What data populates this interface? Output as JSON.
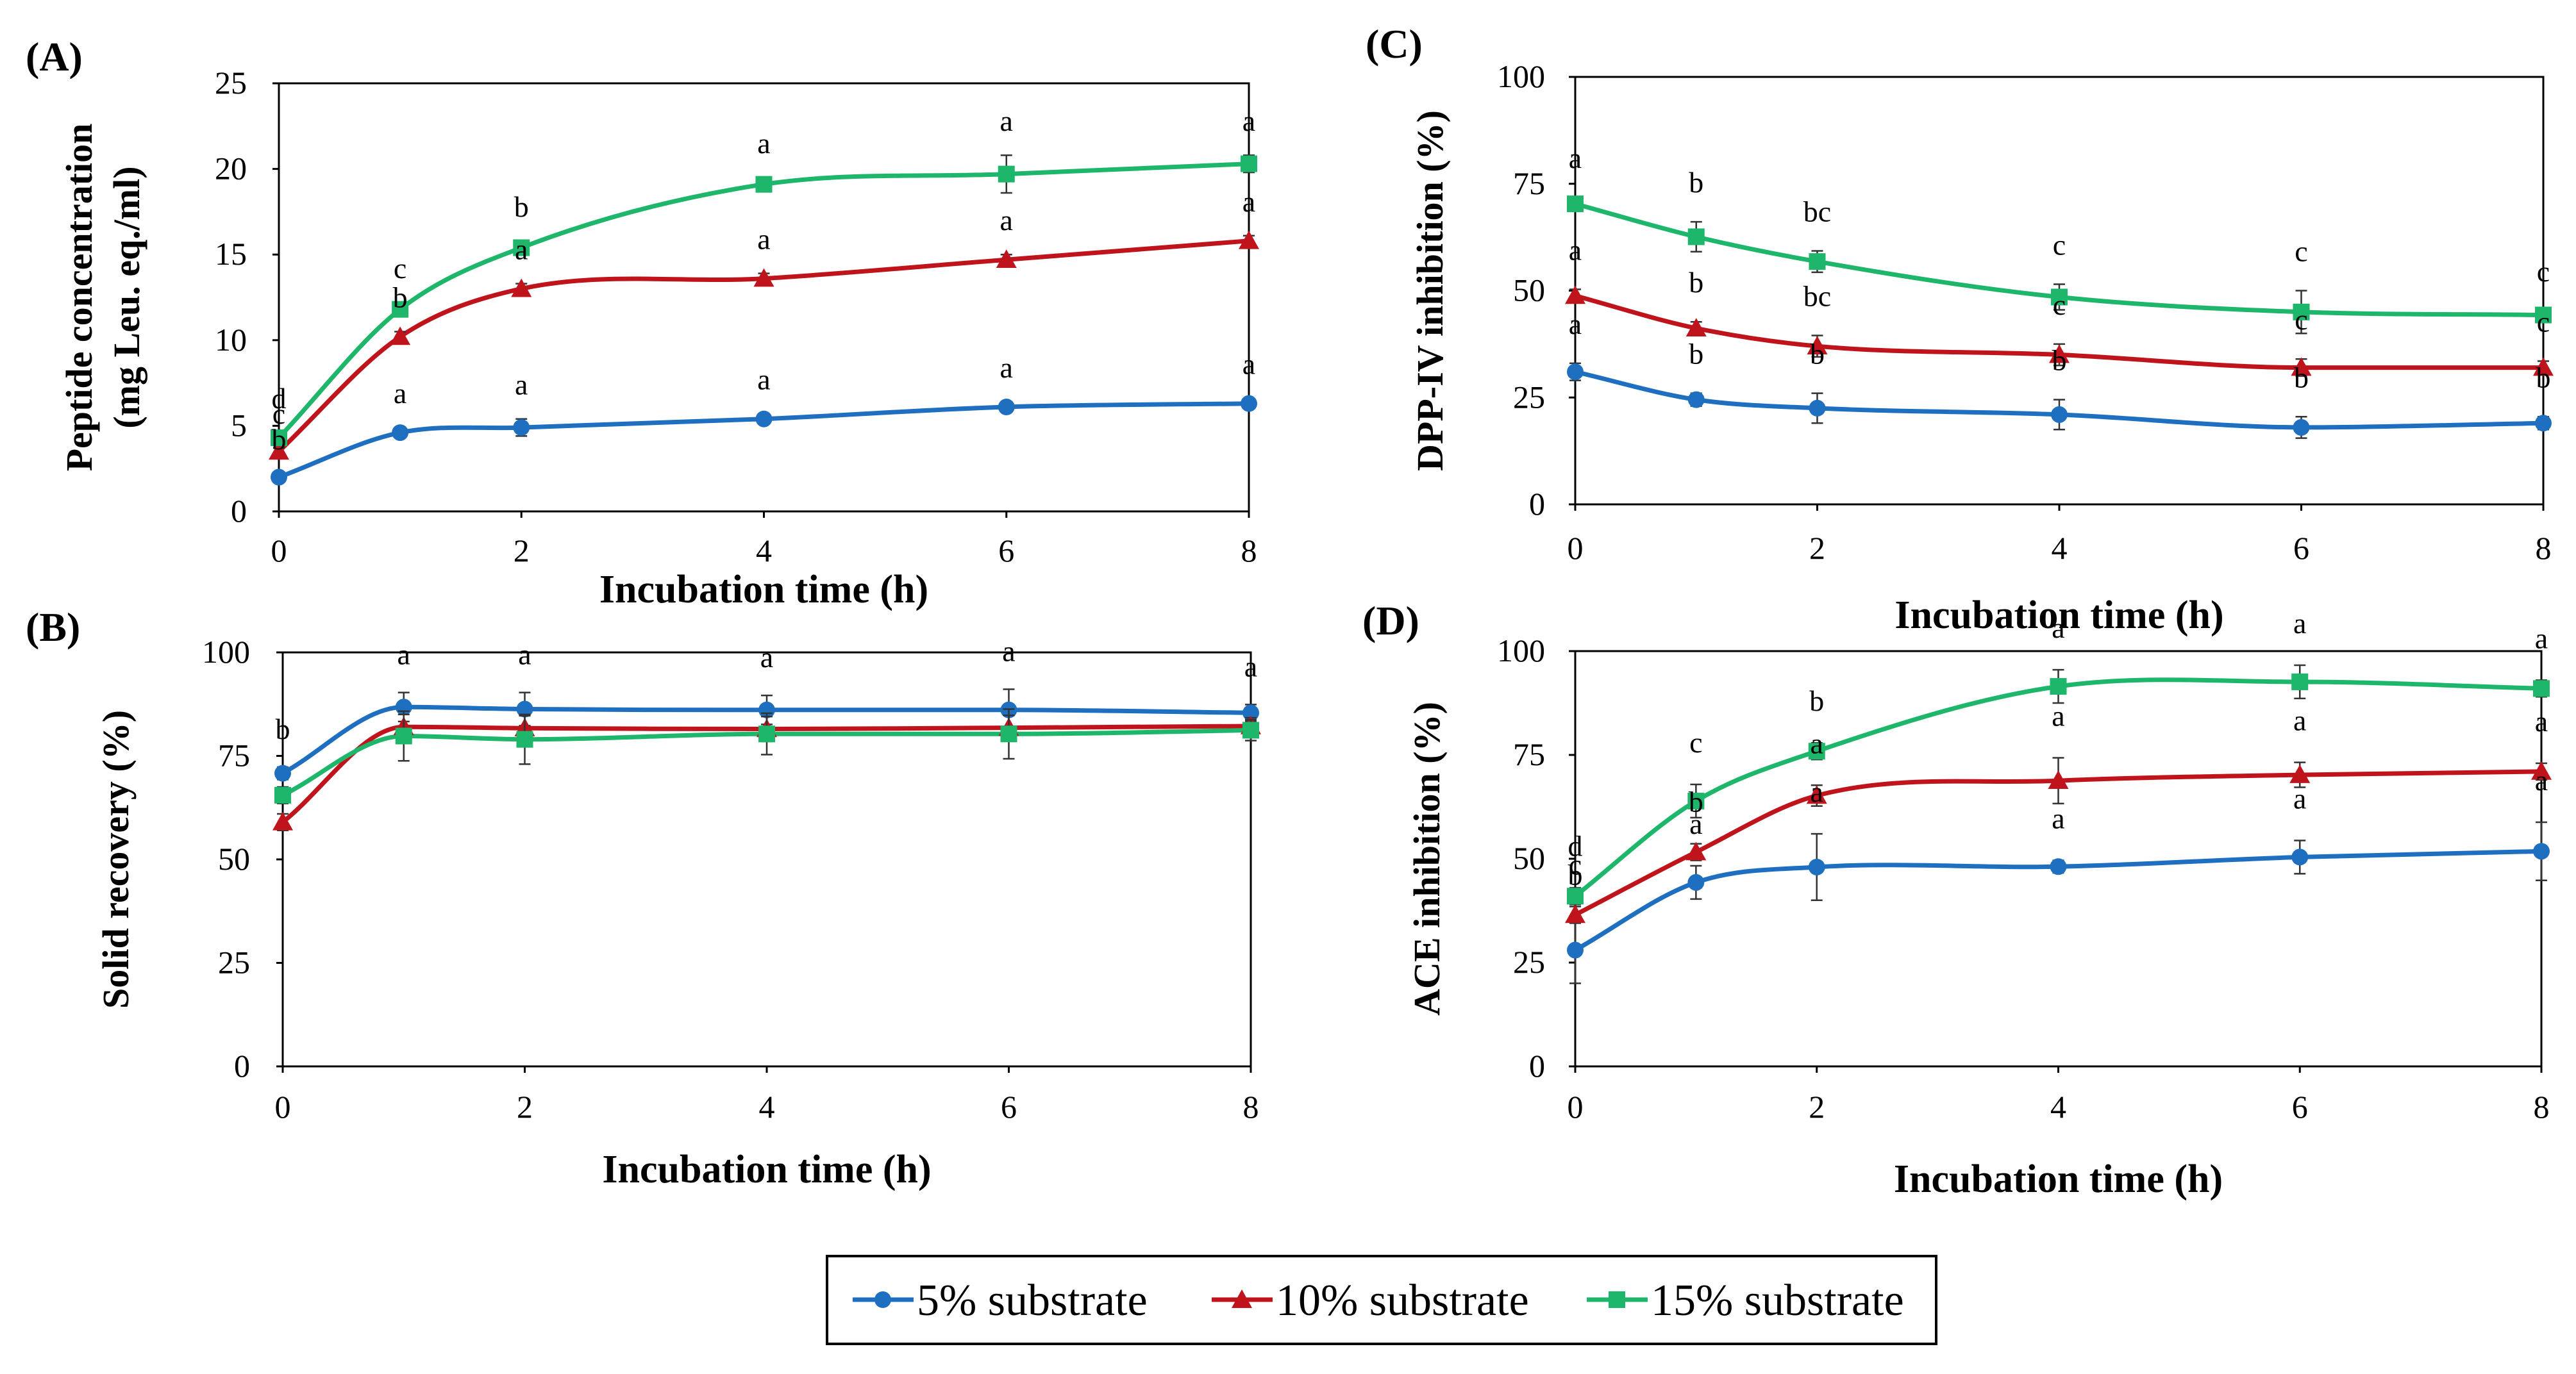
{
  "figure": {
    "series": [
      {
        "name": "5% substrate",
        "color": "#1f6fc0",
        "marker": "circle"
      },
      {
        "name": "10% substrate",
        "color": "#c0141c",
        "marker": "triangle"
      },
      {
        "name": "15% substrate",
        "color": "#1db66a",
        "marker": "square"
      }
    ]
  },
  "chart_data": [
    {
      "panel": "(A)",
      "type": "line",
      "title": "",
      "xlabel": "Incubation time (h)",
      "ylabel": [
        "Peptide concentration",
        "(mg Leu. eq./ml)"
      ],
      "x": [
        0,
        1,
        2,
        4,
        6,
        8
      ],
      "xlim": [
        0,
        8
      ],
      "xticks": [
        "0",
        "2",
        "4",
        "6",
        "8"
      ],
      "ylim": [
        0,
        25
      ],
      "yticks": [
        "0",
        "5",
        "10",
        "15",
        "20",
        "25"
      ],
      "series": [
        {
          "name": "5% substrate",
          "values": [
            2.0,
            4.6,
            4.9,
            5.4,
            6.1,
            6.3
          ],
          "errors": [
            0.2,
            0.3,
            0.5,
            0.3,
            0.3,
            0.3
          ],
          "labels": [
            "b",
            "a",
            "a",
            "a",
            "a",
            "a"
          ]
        },
        {
          "name": "10% substrate",
          "values": [
            3.5,
            10.2,
            13.0,
            13.6,
            14.7,
            15.8
          ],
          "errors": [
            0.2,
            0.3,
            0.3,
            0.3,
            0.3,
            0.3
          ],
          "labels": [
            "c",
            "b",
            "a",
            "a",
            "a",
            "a"
          ]
        },
        {
          "name": "15% substrate",
          "values": [
            4.3,
            11.8,
            15.4,
            19.1,
            19.7,
            20.3
          ],
          "errors": [
            0.3,
            0.4,
            0.4,
            0.4,
            1.1,
            0.5
          ],
          "labels": [
            "d",
            "c",
            "b",
            "a",
            "a",
            "a"
          ]
        }
      ]
    },
    {
      "panel": "(B)",
      "type": "line",
      "title": "",
      "xlabel": "Incubation time (h)",
      "ylabel": [
        "Solid recovery (%)"
      ],
      "x": [
        0,
        1,
        2,
        4,
        6,
        8
      ],
      "xlim": [
        0,
        8
      ],
      "xticks": [
        "0",
        "2",
        "4",
        "6",
        "8"
      ],
      "ylim": [
        0,
        100
      ],
      "yticks": [
        "0",
        "25",
        "50",
        "75",
        "100"
      ],
      "series": [
        {
          "name": "5% substrate",
          "values": [
            70.8,
            86.8,
            86.3,
            86.1,
            86.1,
            85.4
          ],
          "errors": [
            1.5,
            3.5,
            4.0,
            3.5,
            5.0,
            2.0
          ],
          "labels": [
            "b",
            "a",
            "a",
            "a",
            "a",
            "a"
          ]
        },
        {
          "name": "10% substrate",
          "values": [
            59.0,
            82.0,
            81.7,
            81.5,
            81.8,
            82.2
          ],
          "errors": [
            2.0,
            3.0,
            3.0,
            3.0,
            3.0,
            2.0
          ],
          "labels": [
            "",
            "",
            "",
            "",
            "",
            ""
          ]
        },
        {
          "name": "15% substrate",
          "values": [
            65.5,
            79.8,
            79.0,
            80.3,
            80.3,
            81.2
          ],
          "errors": [
            2.0,
            6.0,
            6.0,
            5.0,
            6.0,
            2.5
          ],
          "labels": [
            "",
            "",
            "",
            "",
            "",
            ""
          ]
        }
      ]
    },
    {
      "panel": "(C)",
      "type": "line",
      "title": "",
      "xlabel": "Incubation time (h)",
      "ylabel": [
        "DPP-IV inhibition (%)"
      ],
      "x": [
        0,
        1,
        2,
        4,
        6,
        8
      ],
      "xlim": [
        0,
        8
      ],
      "xticks": [
        "0",
        "2",
        "4",
        "6",
        "8"
      ],
      "ylim": [
        0,
        100
      ],
      "yticks": [
        "0",
        "25",
        "50",
        "75",
        "100"
      ],
      "series": [
        {
          "name": "5% substrate",
          "values": [
            31.0,
            24.5,
            22.5,
            21.0,
            18.0,
            19.0
          ],
          "errors": [
            2.0,
            1.5,
            3.5,
            3.5,
            2.5,
            1.5
          ],
          "labels": [
            "a",
            "b",
            "b",
            "b",
            "b",
            "b"
          ]
        },
        {
          "name": "10% substrate",
          "values": [
            48.8,
            41.2,
            37.0,
            35.0,
            32.0,
            32.0
          ],
          "errors": [
            1.5,
            1.5,
            2.5,
            2.5,
            2.0,
            1.5
          ],
          "labels": [
            "a",
            "b",
            "bc",
            "c",
            "c",
            "c"
          ]
        },
        {
          "name": "15% substrate",
          "values": [
            70.3,
            62.6,
            56.8,
            48.5,
            45.0,
            44.3
          ],
          "errors": [
            1.5,
            3.5,
            2.5,
            3.0,
            5.0,
            1.0
          ],
          "labels": [
            "a",
            "b",
            "bc",
            "c",
            "c",
            "c"
          ]
        }
      ]
    },
    {
      "panel": "(D)",
      "type": "line",
      "title": "",
      "xlabel": "Incubation time (h)",
      "ylabel": [
        "ACE inhibition (%)"
      ],
      "x": [
        0,
        1,
        2,
        4,
        6,
        8
      ],
      "xlim": [
        0,
        8
      ],
      "xticks": [
        "0",
        "2",
        "4",
        "6",
        "8"
      ],
      "ylim": [
        0,
        100
      ],
      "yticks": [
        "0",
        "25",
        "50",
        "75",
        "100"
      ],
      "series": [
        {
          "name": "5% substrate",
          "values": [
            28.0,
            44.3,
            48.0,
            48.1,
            50.4,
            51.8
          ],
          "errors": [
            8.0,
            4.0,
            8.0,
            1.5,
            4.0,
            7.0
          ],
          "labels": [
            "b",
            "a",
            "a",
            "a",
            "a",
            "a"
          ]
        },
        {
          "name": "10% substrate",
          "values": [
            36.5,
            51.6,
            65.2,
            68.8,
            70.2,
            71.0
          ],
          "errors": [
            2.0,
            2.0,
            2.5,
            5.5,
            3.0,
            2.0
          ],
          "labels": [
            "c",
            "b",
            "a",
            "a",
            "a",
            "a"
          ]
        },
        {
          "name": "15% substrate",
          "values": [
            41.0,
            63.9,
            75.9,
            91.5,
            92.6,
            91.0
          ],
          "errors": [
            2.0,
            4.0,
            2.0,
            4.0,
            4.0,
            2.0
          ],
          "labels": [
            "d",
            "c",
            "b",
            "a",
            "a",
            "a"
          ]
        }
      ]
    }
  ]
}
